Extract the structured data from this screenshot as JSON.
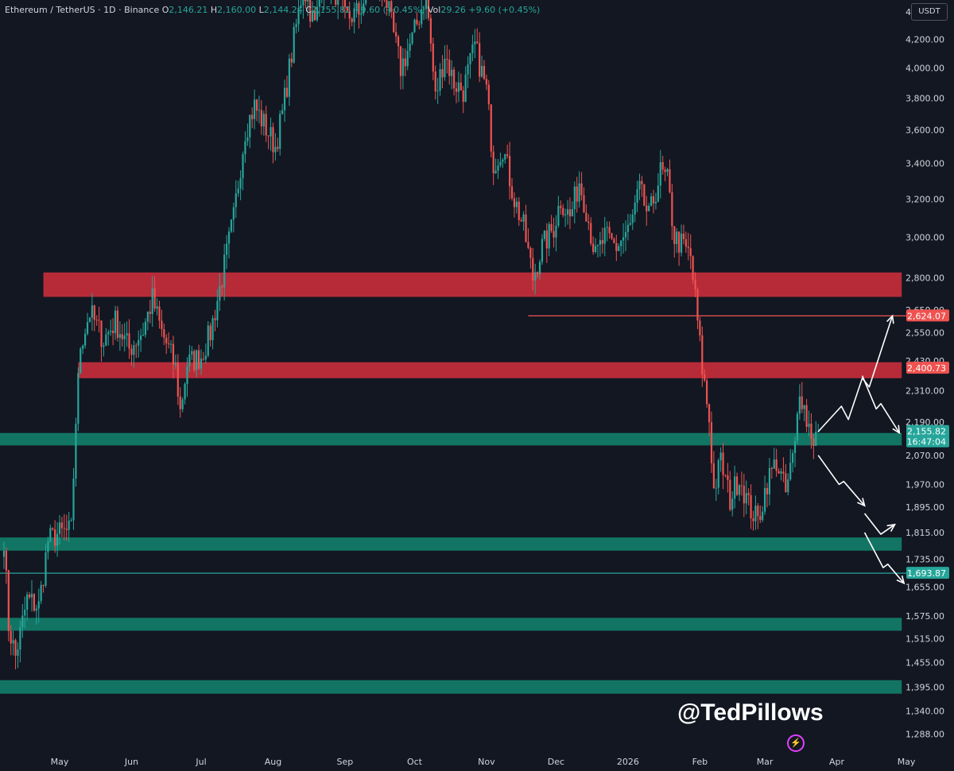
{
  "header": {
    "symbol": "Ethereum / TetherUS · 1D · Binance",
    "o_label": "O",
    "o_value": "2,146.21",
    "h_label": "H",
    "h_value": "2,160.00",
    "l_label": "L",
    "l_value": "2,144.24",
    "c_label": "C",
    "c_value": "2,155.82",
    "change": "+9.60 (+0.45%)",
    "vol_label": "Vol",
    "vol_value": "29.26",
    "vol_change": "+9.60 (+0.45%)"
  },
  "currency_button": "USDT",
  "watermark": "@TedPillows",
  "logo_icon": "lightning-icon",
  "colors": {
    "background": "#131722",
    "up": "#26a69a",
    "down": "#ef5350",
    "resistance_zone": "#c62e3c",
    "support_zone": "#127a68",
    "text": "#d1d4dc"
  },
  "chart_data": {
    "type": "candlestick",
    "title": "Ethereum / TetherUS · 1D · Binance",
    "yscale": "log",
    "ylim": [
      1260,
      4460
    ],
    "price_axis_labels": [
      "4,400.00",
      "4,200.00",
      "4,000.00",
      "3,800.00",
      "3,600.00",
      "3,400.00",
      "3,200.00",
      "3,000.00",
      "2,800.00",
      "2,650.00",
      "2,550.00",
      "2,430.00",
      "2,310.00",
      "2,190.00",
      "2,070.00",
      "1,970.00",
      "1,895.00",
      "1,815.00",
      "1,735.00",
      "1,655.00",
      "1,575.00",
      "1,515.00",
      "1,455.00",
      "1,395.00",
      "1,340.00",
      "1,288.00"
    ],
    "price_axis_values": [
      4400,
      4200,
      4000,
      3800,
      3600,
      3400,
      3200,
      3000,
      2800,
      2650,
      2550,
      2430,
      2310,
      2190,
      2070,
      1970,
      1895,
      1815,
      1735,
      1655,
      1575,
      1515,
      1455,
      1395,
      1340,
      1288
    ],
    "x_ticks": [
      {
        "label": "May",
        "date": "2025-05-01"
      },
      {
        "label": "Jun",
        "date": "2025-06-01"
      },
      {
        "label": "Jul",
        "date": "2025-07-01"
      },
      {
        "label": "Aug",
        "date": "2025-08-01"
      },
      {
        "label": "Sep",
        "date": "2025-09-01"
      },
      {
        "label": "Oct",
        "date": "2025-10-01"
      },
      {
        "label": "Nov",
        "date": "2025-11-01"
      },
      {
        "label": "Dec",
        "date": "2025-12-01"
      },
      {
        "label": "2026",
        "date": "2026-01-01"
      },
      {
        "label": "Feb",
        "date": "2026-02-01"
      },
      {
        "label": "Mar",
        "date": "2026-03-01"
      },
      {
        "label": "Apr",
        "date": "2026-04-01"
      },
      {
        "label": "May",
        "date": "2026-05-01"
      }
    ],
    "series": [
      {
        "close_path": [
          {
            "date": "2025-04-07",
            "price": 1800
          },
          {
            "date": "2025-04-09",
            "price": 1550
          },
          {
            "date": "2025-04-12",
            "price": 1470
          },
          {
            "date": "2025-04-17",
            "price": 1620
          },
          {
            "date": "2025-04-22",
            "price": 1600
          },
          {
            "date": "2025-04-26",
            "price": 1790
          },
          {
            "date": "2025-04-30",
            "price": 1810
          },
          {
            "date": "2025-05-06",
            "price": 1820
          },
          {
            "date": "2025-05-08",
            "price": 2200
          },
          {
            "date": "2025-05-10",
            "price": 2500
          },
          {
            "date": "2025-05-14",
            "price": 2640
          },
          {
            "date": "2025-05-20",
            "price": 2520
          },
          {
            "date": "2025-05-25",
            "price": 2600
          },
          {
            "date": "2025-05-31",
            "price": 2480
          },
          {
            "date": "2025-06-06",
            "price": 2560
          },
          {
            "date": "2025-06-10",
            "price": 2700
          },
          {
            "date": "2025-06-14",
            "price": 2550
          },
          {
            "date": "2025-06-17",
            "price": 2480
          },
          {
            "date": "2025-06-20",
            "price": 2400
          },
          {
            "date": "2025-06-22",
            "price": 2230
          },
          {
            "date": "2025-06-25",
            "price": 2420
          },
          {
            "date": "2025-07-01",
            "price": 2450
          },
          {
            "date": "2025-07-05",
            "price": 2550
          },
          {
            "date": "2025-07-10",
            "price": 2800
          },
          {
            "date": "2025-07-15",
            "price": 3100
          },
          {
            "date": "2025-07-20",
            "price": 3600
          },
          {
            "date": "2025-07-24",
            "price": 3750
          },
          {
            "date": "2025-08-02",
            "price": 3500
          },
          {
            "date": "2025-08-05",
            "price": 3700
          },
          {
            "date": "2025-08-10",
            "price": 4200
          },
          {
            "date": "2025-08-14",
            "price": 4600
          },
          {
            "date": "2025-08-19",
            "price": 4300
          },
          {
            "date": "2025-08-23",
            "price": 4700
          },
          {
            "date": "2025-08-28",
            "price": 4550
          },
          {
            "date": "2025-09-01",
            "price": 4350
          },
          {
            "date": "2025-09-07",
            "price": 4400
          },
          {
            "date": "2025-09-13",
            "price": 4650
          },
          {
            "date": "2025-09-18",
            "price": 4550
          },
          {
            "date": "2025-09-25",
            "price": 4000
          },
          {
            "date": "2025-09-30",
            "price": 4200
          },
          {
            "date": "2025-10-06",
            "price": 4550
          },
          {
            "date": "2025-10-10",
            "price": 3800
          },
          {
            "date": "2025-10-14",
            "price": 4100
          },
          {
            "date": "2025-10-18",
            "price": 3900
          },
          {
            "date": "2025-10-22",
            "price": 3850
          },
          {
            "date": "2025-10-27",
            "price": 4150
          },
          {
            "date": "2025-11-01",
            "price": 3850
          },
          {
            "date": "2025-11-04",
            "price": 3400
          },
          {
            "date": "2025-11-08",
            "price": 3500
          },
          {
            "date": "2025-11-13",
            "price": 3200
          },
          {
            "date": "2025-11-17",
            "price": 3050
          },
          {
            "date": "2025-11-21",
            "price": 2800
          },
          {
            "date": "2025-11-25",
            "price": 2950
          },
          {
            "date": "2025-11-30",
            "price": 3050
          },
          {
            "date": "2025-12-03",
            "price": 3200
          },
          {
            "date": "2025-12-07",
            "price": 3100
          },
          {
            "date": "2025-12-11",
            "price": 3300
          },
          {
            "date": "2025-12-14",
            "price": 3150
          },
          {
            "date": "2025-12-18",
            "price": 2900
          },
          {
            "date": "2025-12-22",
            "price": 3000
          },
          {
            "date": "2025-12-27",
            "price": 2950
          },
          {
            "date": "2026-01-02",
            "price": 3050
          },
          {
            "date": "2026-01-06",
            "price": 3250
          },
          {
            "date": "2026-01-10",
            "price": 3100
          },
          {
            "date": "2026-01-15",
            "price": 3350
          },
          {
            "date": "2026-01-18",
            "price": 3300
          },
          {
            "date": "2026-01-21",
            "price": 3000
          },
          {
            "date": "2026-01-25",
            "price": 2950
          },
          {
            "date": "2026-01-28",
            "price": 2900
          },
          {
            "date": "2026-01-30",
            "price": 2700
          },
          {
            "date": "2026-02-02",
            "price": 2400
          },
          {
            "date": "2026-02-05",
            "price": 2200
          },
          {
            "date": "2026-02-07",
            "price": 1950
          },
          {
            "date": "2026-02-10",
            "price": 2050
          },
          {
            "date": "2026-02-14",
            "price": 1920
          },
          {
            "date": "2026-02-18",
            "price": 2000
          },
          {
            "date": "2026-02-22",
            "price": 1900
          },
          {
            "date": "2026-02-26",
            "price": 1850
          },
          {
            "date": "2026-03-02",
            "price": 1980
          },
          {
            "date": "2026-03-06",
            "price": 2050
          },
          {
            "date": "2026-03-10",
            "price": 1940
          },
          {
            "date": "2026-03-14",
            "price": 2100
          },
          {
            "date": "2026-03-16",
            "price": 2330
          },
          {
            "date": "2026-03-19",
            "price": 2200
          },
          {
            "date": "2026-03-22",
            "price": 2130
          },
          {
            "date": "2026-03-24",
            "price": 2155.82
          }
        ]
      }
    ],
    "zones": [
      {
        "kind": "resistance",
        "from_date": "2025-04-24",
        "to_date": "2026-04-29",
        "low": 2710,
        "high": 2825
      },
      {
        "kind": "resistance",
        "from_date": "2025-05-09",
        "to_date": "2026-04-29",
        "low": 2360,
        "high": 2425
      },
      {
        "kind": "support",
        "from_date": "2025-04-01",
        "to_date": "2026-04-29",
        "low": 2105,
        "high": 2150
      },
      {
        "kind": "support",
        "from_date": "2025-04-01",
        "to_date": "2026-04-29",
        "low": 1760,
        "high": 1800
      },
      {
        "kind": "support",
        "from_date": "2025-04-01",
        "to_date": "2026-04-29",
        "low": 1536,
        "high": 1570
      },
      {
        "kind": "support",
        "from_date": "2025-04-01",
        "to_date": "2026-04-29",
        "low": 1380,
        "high": 1412
      }
    ],
    "horizontal_lines": [
      {
        "price": 2624.07,
        "from_date": "2025-11-19",
        "color": "#ef5350"
      },
      {
        "price": 1693.87,
        "from_date": "2025-04-01",
        "color": "#26a69a"
      }
    ],
    "price_tags": [
      {
        "price": 2624.07,
        "label": "2,624.07",
        "color": "#ef5350"
      },
      {
        "price": 2400.73,
        "label": "2,400.73",
        "color": "#ef5350"
      },
      {
        "price": 2155.82,
        "label": "2,155.82",
        "sublabel": "16:47:04",
        "color": "#26a69a"
      },
      {
        "price": 1693.87,
        "label": "1,693.87",
        "color": "#26a69a"
      }
    ],
    "projection_arrows": [
      {
        "scenario": "bullish",
        "points": [
          {
            "date": "2026-03-24",
            "price": 2155
          },
          {
            "date": "2026-04-03",
            "price": 2250
          },
          {
            "date": "2026-04-06",
            "price": 2200
          },
          {
            "date": "2026-04-12",
            "price": 2360
          },
          {
            "date": "2026-04-15",
            "price": 2325
          },
          {
            "date": "2026-04-25",
            "price": 2624
          }
        ]
      },
      {
        "scenario": "rejection",
        "points": [
          {
            "date": "2026-04-12",
            "price": 2370
          },
          {
            "date": "2026-04-18",
            "price": 2240
          },
          {
            "date": "2026-04-20",
            "price": 2260
          },
          {
            "date": "2026-04-28",
            "price": 2150
          }
        ]
      },
      {
        "scenario": "bearish",
        "points": [
          {
            "date": "2026-03-24",
            "price": 2070
          },
          {
            "date": "2026-04-02",
            "price": 1970
          },
          {
            "date": "2026-04-04",
            "price": 1980
          },
          {
            "date": "2026-04-13",
            "price": 1900
          }
        ]
      },
      {
        "scenario": "bounce",
        "points": [
          {
            "date": "2026-04-13",
            "price": 1875
          },
          {
            "date": "2026-04-20",
            "price": 1810
          },
          {
            "date": "2026-04-26",
            "price": 1840
          }
        ]
      },
      {
        "scenario": "breakdown",
        "points": [
          {
            "date": "2026-04-13",
            "price": 1815
          },
          {
            "date": "2026-04-21",
            "price": 1710
          },
          {
            "date": "2026-04-23",
            "price": 1720
          },
          {
            "date": "2026-04-30",
            "price": 1665
          }
        ]
      }
    ]
  }
}
